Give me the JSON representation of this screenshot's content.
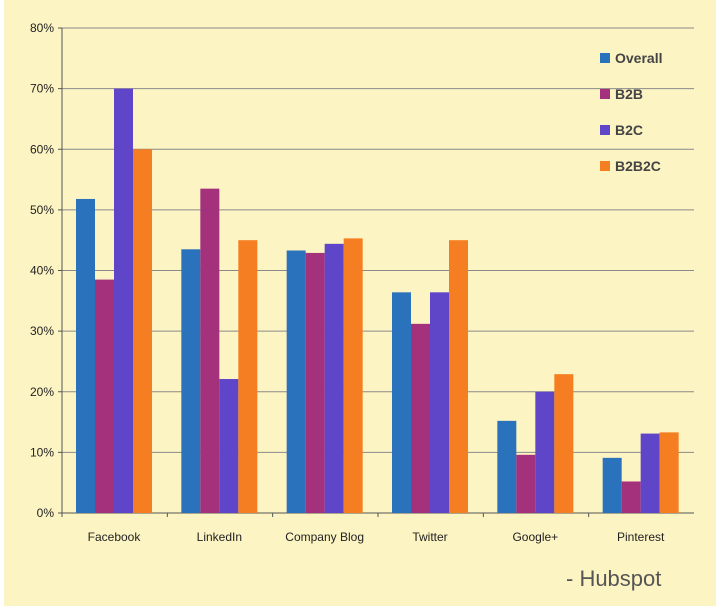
{
  "source_note": "- Hubspot",
  "colors": {
    "background": "#fdf4c3",
    "gridline": "#8a8a8a",
    "axis": "#555555"
  },
  "chart_data": {
    "type": "bar",
    "categories": [
      "Facebook",
      "LinkedIn",
      "Company Blog",
      "Twitter",
      "Google+",
      "Pinterest"
    ],
    "series": [
      {
        "name": "Overall",
        "color": "#2a72bc",
        "values": [
          51.8,
          43.5,
          43.3,
          36.4,
          15.2,
          9.1
        ]
      },
      {
        "name": "B2B",
        "color": "#a3317c",
        "values": [
          38.5,
          53.5,
          42.9,
          31.2,
          9.6,
          5.2
        ]
      },
      {
        "name": "B2C",
        "color": "#5f45c8",
        "values": [
          70.0,
          22.1,
          44.4,
          36.4,
          20.0,
          13.1
        ]
      },
      {
        "name": "B2B2C",
        "color": "#f57e23",
        "values": [
          60.0,
          45.0,
          45.3,
          45.0,
          22.9,
          13.3
        ]
      }
    ],
    "yticks": [
      "0%",
      "10%",
      "20%",
      "30%",
      "40%",
      "50%",
      "60%",
      "70%",
      "80%"
    ],
    "ylim": [
      0,
      80
    ],
    "grid": true,
    "legend_position": "top-right"
  }
}
